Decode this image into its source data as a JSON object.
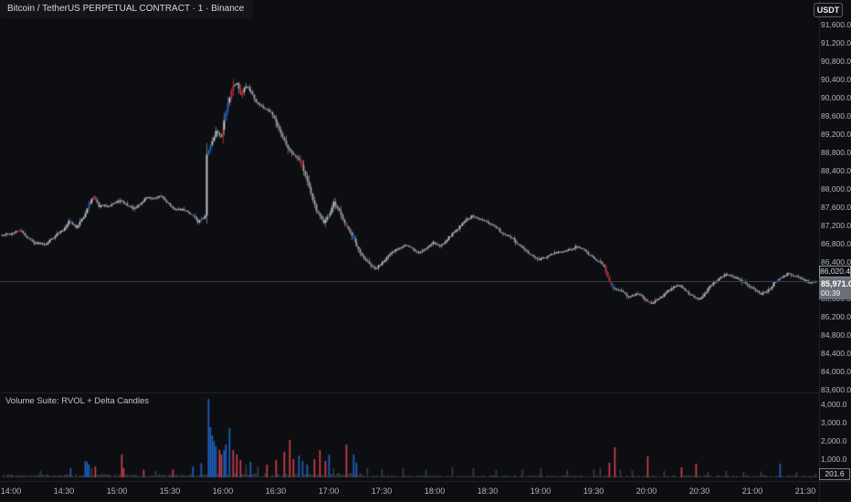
{
  "header": {
    "title": "Bitcoin / TetherUS PERPETUAL CONTRACT · 1 · Binance",
    "currency_button": "USDT"
  },
  "price_axis": {
    "line_label": "86,020.4",
    "last_price": "85,971.0",
    "countdown": "00:39"
  },
  "volume_pane": {
    "label": "Volume Suite: RVOL + Delta Candles",
    "last_value": "201.6"
  },
  "colors": {
    "background": "#0d0e11",
    "axis_text": "#b2b5be",
    "candle_up": "#cfd2d8",
    "candle_down": "#a6a9b0",
    "candle_wick": "#82858d",
    "delta_buy_blue": "#1f66cc",
    "delta_sell_red": "#c23540",
    "volume_neutral": "#3c4049",
    "volume_red": "#d6434e",
    "last_price_label_bg": "#6b6e77",
    "price_line": "#3a3e46"
  },
  "chart_data": {
    "type": "candlestick",
    "symbol": "Bitcoin / TetherUS PERPETUAL CONTRACT",
    "interval_minutes": 1,
    "exchange": "Binance",
    "y_ticks": [
      "91,600.0",
      "91,200.0",
      "90,800.0",
      "90,400.0",
      "90,000.0",
      "89,600.0",
      "89,200.0",
      "88,800.0",
      "88,400.0",
      "88,000.0",
      "87,600.0",
      "87,200.0",
      "86,800.0",
      "86,400.0",
      "85,600.0",
      "85,200.0",
      "84,800.0",
      "84,400.0",
      "84,000.0",
      "83,600.0"
    ],
    "y_range": [
      83600,
      91600
    ],
    "x_ticks": [
      "14:00",
      "14:30",
      "15:00",
      "15:30",
      "16:00",
      "16:30",
      "17:00",
      "17:30",
      "18:00",
      "18:30",
      "19:00",
      "19:30",
      "20:00",
      "20:30",
      "21:00",
      "21:30"
    ],
    "last_price": 85971.0,
    "countdown": "00:39",
    "price_line_label_value": 86020.4,
    "price_path_anchors": [
      [
        -5,
        86980
      ],
      [
        3,
        87040
      ],
      [
        6,
        87100
      ],
      [
        10,
        86940
      ],
      [
        14,
        86820
      ],
      [
        21,
        86800
      ],
      [
        26,
        86980
      ],
      [
        31,
        87120
      ],
      [
        34,
        87300
      ],
      [
        38,
        87160
      ],
      [
        42,
        87380
      ],
      [
        45,
        87680
      ],
      [
        48,
        87820
      ],
      [
        51,
        87620
      ],
      [
        56,
        87640
      ],
      [
        60,
        87700
      ],
      [
        63,
        87740
      ],
      [
        68,
        87620
      ],
      [
        71,
        87560
      ],
      [
        78,
        87820
      ],
      [
        82,
        87780
      ],
      [
        86,
        87840
      ],
      [
        90,
        87680
      ],
      [
        93,
        87560
      ],
      [
        99,
        87540
      ],
      [
        104,
        87420
      ],
      [
        107,
        87280
      ],
      [
        110,
        87360
      ],
      [
        111,
        87400
      ],
      [
        112,
        88760
      ],
      [
        114,
        88950
      ],
      [
        117,
        89260
      ],
      [
        120,
        89120
      ],
      [
        122,
        89500
      ],
      [
        124,
        89900
      ],
      [
        127,
        90260
      ],
      [
        129,
        90330
      ],
      [
        131,
        90080
      ],
      [
        134,
        90240
      ],
      [
        137,
        90150
      ],
      [
        140,
        89900
      ],
      [
        144,
        89780
      ],
      [
        148,
        89680
      ],
      [
        152,
        89400
      ],
      [
        156,
        89050
      ],
      [
        159,
        88830
      ],
      [
        163,
        88700
      ],
      [
        166,
        88520
      ],
      [
        170,
        88030
      ],
      [
        174,
        87520
      ],
      [
        178,
        87270
      ],
      [
        182,
        87480
      ],
      [
        184,
        87700
      ],
      [
        187,
        87500
      ],
      [
        192,
        87120
      ],
      [
        199,
        86580
      ],
      [
        204,
        86350
      ],
      [
        207,
        86240
      ],
      [
        212,
        86420
      ],
      [
        215,
        86540
      ],
      [
        220,
        86700
      ],
      [
        224,
        86780
      ],
      [
        228,
        86700
      ],
      [
        232,
        86590
      ],
      [
        236,
        86700
      ],
      [
        240,
        86840
      ],
      [
        244,
        86740
      ],
      [
        249,
        86940
      ],
      [
        253,
        87100
      ],
      [
        258,
        87300
      ],
      [
        262,
        87400
      ],
      [
        266,
        87330
      ],
      [
        270,
        87310
      ],
      [
        275,
        87180
      ],
      [
        279,
        87040
      ],
      [
        284,
        86940
      ],
      [
        289,
        86760
      ],
      [
        295,
        86560
      ],
      [
        300,
        86440
      ],
      [
        304,
        86500
      ],
      [
        308,
        86580
      ],
      [
        312,
        86620
      ],
      [
        316,
        86640
      ],
      [
        322,
        86740
      ],
      [
        326,
        86640
      ],
      [
        330,
        86500
      ],
      [
        334,
        86420
      ],
      [
        337,
        86300
      ],
      [
        340,
        85950
      ],
      [
        342,
        85840
      ],
      [
        346,
        85780
      ],
      [
        351,
        85640
      ],
      [
        356,
        85700
      ],
      [
        360,
        85580
      ],
      [
        364,
        85490
      ],
      [
        368,
        85600
      ],
      [
        372,
        85720
      ],
      [
        375,
        85840
      ],
      [
        379,
        85900
      ],
      [
        384,
        85740
      ],
      [
        388,
        85620
      ],
      [
        391,
        85580
      ],
      [
        394,
        85700
      ],
      [
        397,
        85860
      ],
      [
        402,
        86040
      ],
      [
        406,
        86140
      ],
      [
        411,
        86060
      ],
      [
        415,
        85980
      ],
      [
        418,
        85900
      ],
      [
        422,
        85800
      ],
      [
        426,
        85700
      ],
      [
        430,
        85780
      ],
      [
        434,
        85980
      ],
      [
        438,
        86060
      ],
      [
        441,
        86140
      ],
      [
        446,
        86080
      ],
      [
        450,
        86020
      ],
      [
        453,
        85950
      ],
      [
        456,
        85971
      ]
    ],
    "candle_colors": {
      "red": [
        4,
        5,
        47,
        48,
        120,
        125,
        126,
        130,
        131,
        164,
        165,
        190,
        337,
        338,
        339,
        340,
        361
      ],
      "blue": [
        34,
        44,
        103,
        108,
        112,
        113,
        122,
        123,
        180,
        194,
        341,
        434,
        436
      ]
    },
    "volume": {
      "y_ticks": [
        "4,000.0",
        "3,000.0",
        "2,000.0",
        "1,000.0"
      ],
      "axis_max": 4000,
      "last": 201.6,
      "spikes": [
        [
          17,
          350,
          "g"
        ],
        [
          34,
          500,
          "b"
        ],
        [
          42,
          900,
          "b"
        ],
        [
          43,
          850,
          "b"
        ],
        [
          44,
          700,
          "b"
        ],
        [
          46,
          500,
          "g"
        ],
        [
          48,
          600,
          "r"
        ],
        [
          63,
          1250,
          "r"
        ],
        [
          64,
          500,
          "r"
        ],
        [
          75,
          420,
          "r"
        ],
        [
          82,
          380,
          "g"
        ],
        [
          92,
          420,
          "r"
        ],
        [
          103,
          600,
          "b"
        ],
        [
          108,
          780,
          "b"
        ],
        [
          112,
          4300,
          "b"
        ],
        [
          113,
          2750,
          "b"
        ],
        [
          114,
          2300,
          "b"
        ],
        [
          115,
          2000,
          "b"
        ],
        [
          116,
          1700,
          "b"
        ],
        [
          118,
          1500,
          "r"
        ],
        [
          119,
          1250,
          "r"
        ],
        [
          121,
          1500,
          "b"
        ],
        [
          122,
          1800,
          "b"
        ],
        [
          124,
          2700,
          "b"
        ],
        [
          126,
          1500,
          "r"
        ],
        [
          128,
          1250,
          "r"
        ],
        [
          130,
          950,
          "r"
        ],
        [
          133,
          700,
          "g"
        ],
        [
          136,
          850,
          "b"
        ],
        [
          140,
          600,
          "g"
        ],
        [
          145,
          700,
          "r"
        ],
        [
          150,
          950,
          "r"
        ],
        [
          155,
          1400,
          "r"
        ],
        [
          158,
          2050,
          "r"
        ],
        [
          160,
          1000,
          "r"
        ],
        [
          163,
          1200,
          "b"
        ],
        [
          165,
          900,
          "b"
        ],
        [
          168,
          700,
          "b"
        ],
        [
          172,
          1000,
          "r"
        ],
        [
          175,
          1500,
          "r"
        ],
        [
          178,
          900,
          "r"
        ],
        [
          180,
          1250,
          "b"
        ],
        [
          183,
          500,
          "g"
        ],
        [
          190,
          1800,
          "r"
        ],
        [
          194,
          1250,
          "b"
        ],
        [
          196,
          800,
          "b"
        ],
        [
          202,
          500,
          "g"
        ],
        [
          210,
          450,
          "g"
        ],
        [
          222,
          520,
          "g"
        ],
        [
          235,
          400,
          "g"
        ],
        [
          250,
          550,
          "g"
        ],
        [
          262,
          500,
          "g"
        ],
        [
          275,
          400,
          "g"
        ],
        [
          290,
          450,
          "g"
        ],
        [
          300,
          500,
          "g"
        ],
        [
          315,
          400,
          "g"
        ],
        [
          330,
          450,
          "g"
        ],
        [
          334,
          500,
          "g"
        ],
        [
          339,
          800,
          "r"
        ],
        [
          342,
          1650,
          "r"
        ],
        [
          345,
          420,
          "g"
        ],
        [
          352,
          380,
          "g"
        ],
        [
          361,
          1150,
          "r"
        ],
        [
          370,
          350,
          "g"
        ],
        [
          380,
          550,
          "r"
        ],
        [
          388,
          750,
          "r"
        ],
        [
          395,
          300,
          "g"
        ],
        [
          405,
          350,
          "g"
        ],
        [
          415,
          300,
          "g"
        ],
        [
          425,
          320,
          "g"
        ],
        [
          436,
          750,
          "b"
        ],
        [
          445,
          280,
          "g"
        ],
        [
          456,
          202,
          "g"
        ]
      ]
    }
  }
}
